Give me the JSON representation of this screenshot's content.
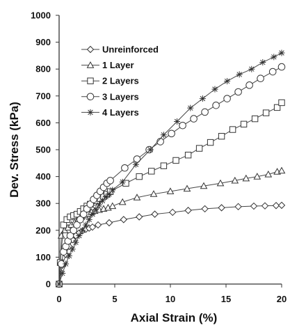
{
  "chart_data": {
    "type": "line",
    "title": "",
    "xlabel": "Axial Strain (%)",
    "ylabel": "Dev. Stress (kPa)",
    "xlim": [
      0,
      20
    ],
    "ylim": [
      0,
      1000
    ],
    "xticks": [
      0,
      5,
      10,
      15,
      20
    ],
    "yticks": [
      0,
      100,
      200,
      300,
      400,
      500,
      600,
      700,
      800,
      900,
      1000
    ],
    "xtick_labels": [
      "0",
      "5",
      "10",
      "15",
      "20"
    ],
    "ytick_labels": [
      "0",
      "100",
      "200",
      "300",
      "400",
      "500",
      "600",
      "700",
      "800",
      "900",
      "1000"
    ],
    "grid": false,
    "legend_position": "top-left",
    "series": [
      {
        "name": "Unreinforced",
        "marker": "diamond",
        "x": [
          0,
          0.3,
          0.6,
          0.9,
          1.2,
          1.5,
          1.8,
          2.1,
          2.4,
          2.7,
          3.0,
          3.5,
          4.5,
          5.8,
          7.2,
          8.6,
          10.2,
          11.6,
          13.1,
          14.6,
          16.1,
          17.5,
          18.5,
          19.5,
          20.0
        ],
        "y": [
          0,
          70,
          110,
          140,
          165,
          180,
          190,
          198,
          204,
          208,
          212,
          220,
          228,
          240,
          250,
          260,
          267,
          274,
          280,
          284,
          288,
          290,
          291,
          292,
          293
        ]
      },
      {
        "name": "1 Layer",
        "marker": "triangle",
        "x": [
          0,
          0.2,
          0.5,
          0.8,
          1.1,
          1.4,
          1.7,
          2.0,
          2.3,
          2.6,
          2.9,
          3.2,
          3.6,
          4.0,
          4.4,
          4.8,
          5.7,
          7.0,
          8.5,
          10.0,
          11.5,
          13.0,
          14.5,
          15.8,
          16.8,
          17.8,
          18.8,
          19.6,
          20.0
        ],
        "y": [
          0,
          180,
          200,
          210,
          220,
          230,
          240,
          250,
          255,
          262,
          268,
          272,
          276,
          280,
          284,
          290,
          305,
          322,
          335,
          345,
          355,
          365,
          375,
          385,
          393,
          400,
          408,
          418,
          422
        ]
      },
      {
        "name": "2 Layers",
        "marker": "square",
        "x": [
          0,
          0.1,
          0.4,
          0.7,
          1.0,
          1.3,
          1.6,
          1.9,
          2.2,
          2.5,
          2.8,
          3.1,
          3.4,
          3.7,
          4.0,
          4.3,
          4.6,
          6.0,
          7.2,
          8.3,
          9.4,
          10.5,
          11.6,
          12.6,
          13.6,
          14.6,
          15.6,
          16.6,
          17.6,
          18.6,
          19.6,
          20.0
        ],
        "y": [
          0,
          80,
          220,
          240,
          250,
          255,
          260,
          270,
          280,
          290,
          297,
          304,
          310,
          318,
          326,
          334,
          344,
          375,
          400,
          420,
          440,
          460,
          480,
          505,
          527,
          550,
          575,
          595,
          615,
          637,
          657,
          675
        ]
      },
      {
        "name": "3 Layers",
        "marker": "circle",
        "x": [
          0,
          0.2,
          0.4,
          0.6,
          0.8,
          1.0,
          1.3,
          1.6,
          1.9,
          2.2,
          2.5,
          2.8,
          3.1,
          3.4,
          3.7,
          4.0,
          4.3,
          4.6,
          5.9,
          7.0,
          8.1,
          9.1,
          10.1,
          11.1,
          12.1,
          13.1,
          14.1,
          15.1,
          16.1,
          17.1,
          18.1,
          19.2,
          20.0
        ],
        "y": [
          0,
          75,
          120,
          140,
          160,
          180,
          200,
          220,
          240,
          260,
          280,
          297,
          315,
          330,
          345,
          360,
          375,
          385,
          432,
          465,
          500,
          530,
          560,
          590,
          615,
          640,
          665,
          690,
          715,
          740,
          765,
          790,
          808
        ]
      },
      {
        "name": "4 Layers",
        "marker": "star",
        "x": [
          0,
          0.3,
          0.6,
          0.9,
          1.2,
          1.5,
          1.8,
          2.1,
          2.4,
          2.7,
          3.0,
          3.3,
          3.6,
          3.9,
          4.2,
          4.5,
          4.8,
          5.7,
          6.9,
          8.2,
          9.4,
          10.6,
          11.8,
          12.9,
          14.0,
          15.1,
          16.2,
          17.3,
          18.3,
          19.3,
          20.0
        ],
        "y": [
          0,
          40,
          75,
          105,
          130,
          155,
          180,
          200,
          220,
          240,
          260,
          278,
          295,
          310,
          325,
          335,
          350,
          380,
          445,
          500,
          555,
          605,
          655,
          690,
          725,
          755,
          780,
          800,
          825,
          845,
          860
        ]
      }
    ]
  }
}
